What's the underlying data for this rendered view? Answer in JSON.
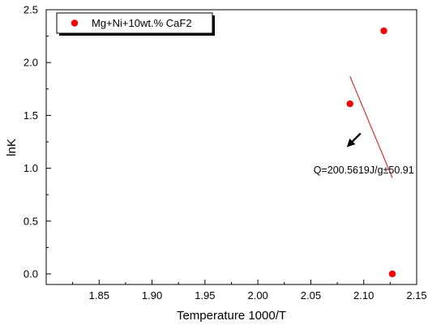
{
  "chart_data": {
    "type": "scatter",
    "xlabel": "Temperature 1000/T",
    "ylabel": "lnK",
    "xlim": [
      1.8,
      2.15
    ],
    "ylim": [
      -0.1,
      2.5
    ],
    "xticks": [
      "1.85",
      "1.90",
      "1.95",
      "2.00",
      "2.05",
      "2.10",
      "2.15"
    ],
    "xtick_values": [
      1.85,
      1.9,
      1.95,
      2.0,
      2.05,
      2.1,
      2.15
    ],
    "yticks": [
      "0.0",
      "0.5",
      "1.0",
      "1.5",
      "2.0",
      "2.5"
    ],
    "ytick_values": [
      0.0,
      0.5,
      1.0,
      1.5,
      2.0,
      2.5
    ],
    "grid": false,
    "legend_position": "top-left",
    "series": [
      {
        "name": "Mg+Ni+10wt.% CaF2",
        "color": "#ff0000",
        "x": [
          2.087,
          2.119,
          2.127
        ],
        "y": [
          1.61,
          2.3,
          0.0
        ]
      }
    ],
    "fit_line": {
      "color": "#ff0000",
      "x": [
        2.087,
        2.127
      ],
      "y": [
        1.87,
        0.91
      ]
    },
    "annotation": {
      "text": "Q=200.5619J/g±50.91",
      "at": [
        2.1,
        0.95
      ],
      "arrow_from": [
        2.097,
        1.33
      ],
      "arrow_to": [
        2.084,
        1.2
      ]
    }
  }
}
